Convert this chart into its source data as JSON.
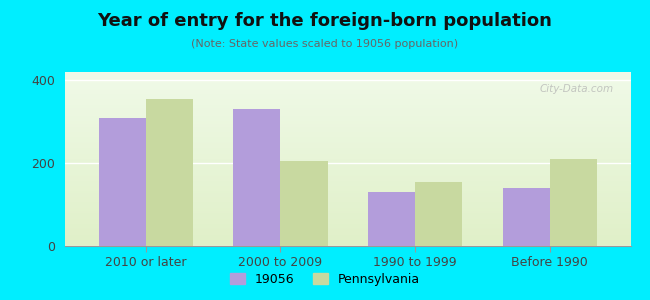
{
  "title": "Year of entry for the foreign-born population",
  "subtitle": "(Note: State values scaled to 19056 population)",
  "categories": [
    "2010 or later",
    "2000 to 2009",
    "1990 to 1999",
    "Before 1990"
  ],
  "values_19056": [
    310,
    330,
    130,
    140
  ],
  "values_pennsylvania": [
    355,
    205,
    155,
    210
  ],
  "bar_color_19056": "#b39ddb",
  "bar_color_pennsylvania": "#c8d9a0",
  "background_color": "#00eeff",
  "ylim": [
    0,
    420
  ],
  "yticks": [
    0,
    200,
    400
  ],
  "bar_width": 0.35,
  "legend_labels": [
    "19056",
    "Pennsylvania"
  ],
  "watermark": "City-Data.com",
  "title_fontsize": 13,
  "subtitle_fontsize": 8,
  "tick_fontsize": 9
}
